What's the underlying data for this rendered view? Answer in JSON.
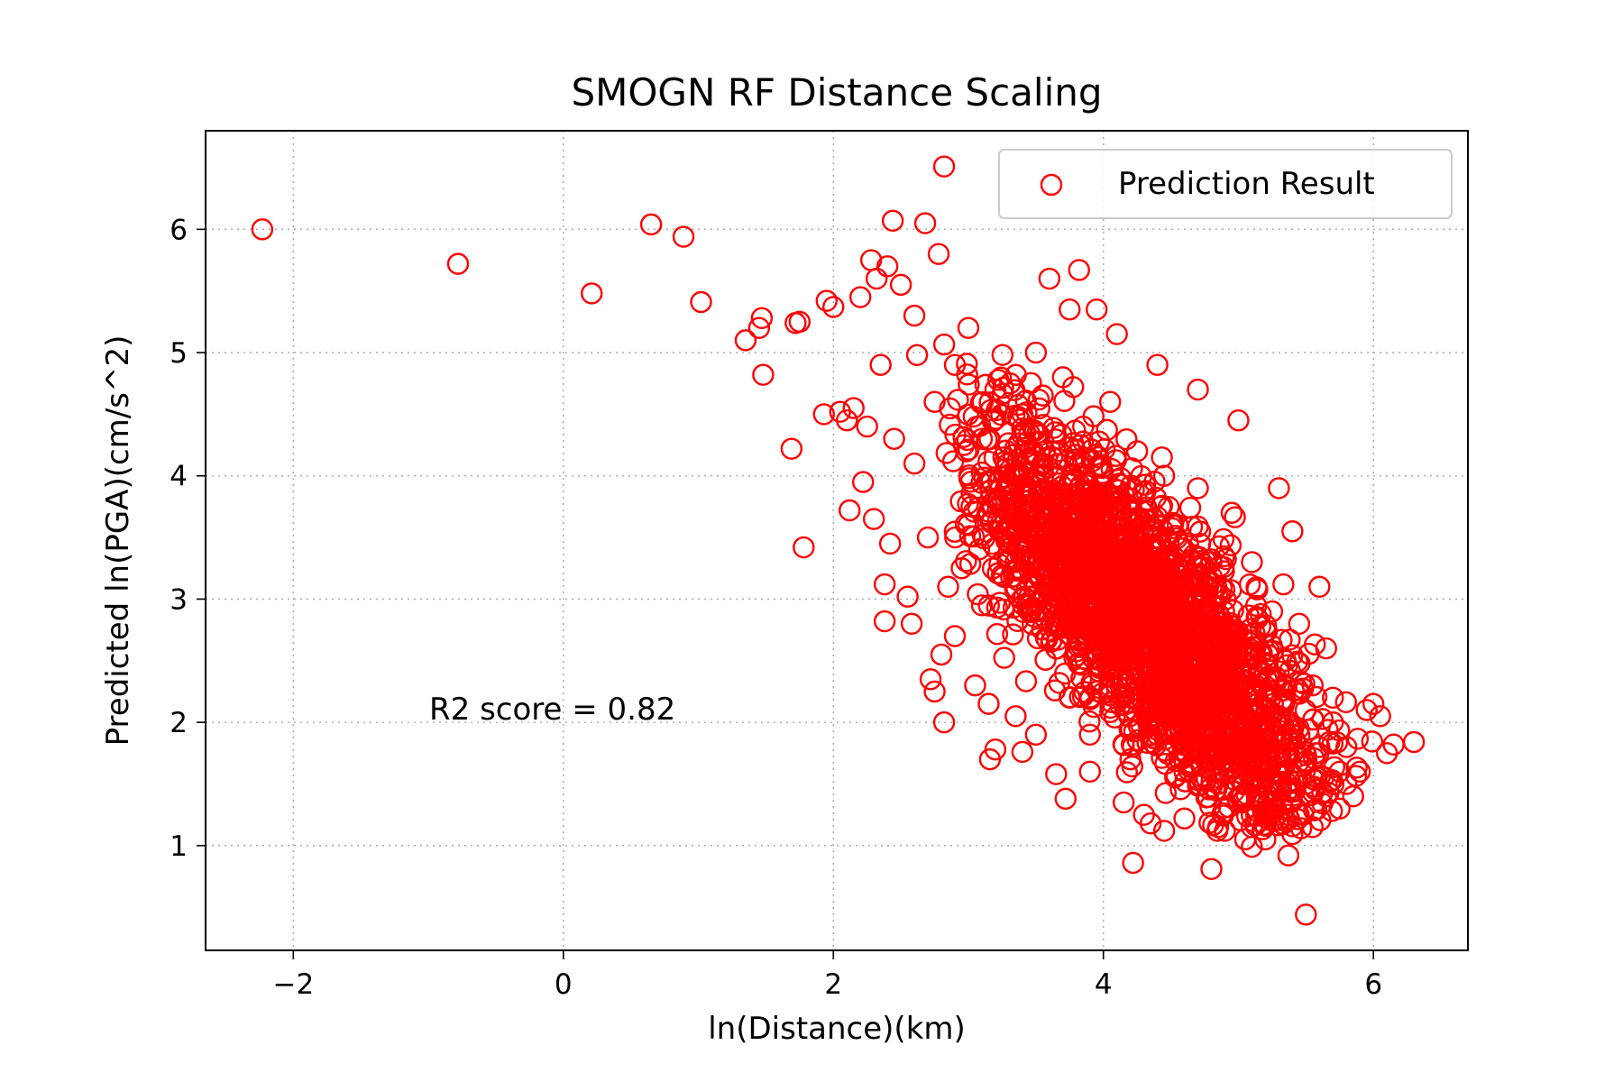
{
  "chart_data": {
    "type": "scatter",
    "title": "SMOGN RF Distance Scaling",
    "xlabel": "ln(Distance)(km)",
    "ylabel": "Predicted ln(PGA)(cm/s^2)",
    "xlim": [
      -2.65,
      6.7
    ],
    "ylim": [
      0.15,
      6.8
    ],
    "xticks": [
      -2,
      0,
      2,
      4,
      6
    ],
    "xtick_labels": [
      "−2",
      "0",
      "2",
      "4",
      "6"
    ],
    "yticks": [
      1,
      2,
      3,
      4,
      5,
      6
    ],
    "ytick_labels": [
      "1",
      "2",
      "3",
      "4",
      "5",
      "6"
    ],
    "grid": true,
    "legend_position": "top-right",
    "annotation": "R2 score = 0.82",
    "marker": "hollow-circle",
    "series": [
      {
        "name": "Prediction Result",
        "color": "#ff0000",
        "points": [
          [
            -2.23,
            6.0
          ],
          [
            -0.78,
            5.72
          ],
          [
            0.21,
            5.48
          ],
          [
            0.65,
            6.04
          ],
          [
            0.89,
            5.94
          ],
          [
            1.02,
            5.41
          ],
          [
            1.35,
            5.1
          ],
          [
            1.45,
            5.2
          ],
          [
            1.47,
            5.28
          ],
          [
            1.48,
            4.82
          ],
          [
            1.69,
            4.22
          ],
          [
            1.72,
            5.24
          ],
          [
            1.75,
            5.25
          ],
          [
            1.78,
            3.42
          ],
          [
            1.93,
            4.5
          ],
          [
            1.95,
            5.42
          ],
          [
            2.0,
            5.37
          ],
          [
            2.05,
            4.52
          ],
          [
            2.1,
            4.45
          ],
          [
            2.12,
            3.72
          ],
          [
            2.15,
            4.55
          ],
          [
            2.2,
            5.45
          ],
          [
            2.22,
            3.95
          ],
          [
            2.25,
            4.4
          ],
          [
            2.28,
            5.75
          ],
          [
            2.3,
            3.65
          ],
          [
            2.32,
            5.6
          ],
          [
            2.35,
            4.9
          ],
          [
            2.38,
            2.82
          ],
          [
            2.38,
            3.12
          ],
          [
            2.4,
            5.7
          ],
          [
            2.42,
            3.45
          ],
          [
            2.44,
            6.07
          ],
          [
            2.45,
            4.3
          ],
          [
            2.5,
            5.55
          ],
          [
            2.55,
            3.02
          ],
          [
            2.58,
            2.8
          ],
          [
            2.6,
            5.3
          ],
          [
            2.62,
            4.98
          ],
          [
            2.68,
            6.05
          ],
          [
            2.72,
            2.35
          ],
          [
            2.75,
            2.25
          ],
          [
            2.78,
            5.8
          ],
          [
            2.8,
            2.55
          ],
          [
            2.82,
            6.51
          ],
          [
            2.82,
            2.0
          ],
          [
            2.85,
            3.1
          ],
          [
            2.9,
            2.7
          ],
          [
            2.95,
            3.25
          ],
          [
            3.0,
            3.6
          ],
          [
            3.05,
            2.3
          ],
          [
            3.1,
            2.95
          ],
          [
            3.15,
            2.15
          ],
          [
            3.16,
            1.7
          ],
          [
            3.2,
            1.78
          ],
          [
            3.25,
            3.8
          ],
          [
            3.35,
            2.05
          ],
          [
            3.4,
            1.76
          ],
          [
            3.5,
            1.9
          ],
          [
            3.6,
            5.6
          ],
          [
            3.65,
            1.58
          ],
          [
            3.72,
            1.38
          ],
          [
            3.75,
            5.35
          ],
          [
            3.82,
            5.67
          ],
          [
            3.9,
            1.6
          ],
          [
            3.95,
            5.35
          ],
          [
            4.1,
            5.15
          ],
          [
            4.15,
            1.35
          ],
          [
            4.22,
            0.86
          ],
          [
            4.3,
            1.25
          ],
          [
            4.35,
            1.18
          ],
          [
            4.4,
            4.9
          ],
          [
            4.45,
            1.12
          ],
          [
            4.6,
            1.22
          ],
          [
            4.7,
            4.7
          ],
          [
            4.8,
            0.81
          ],
          [
            4.85,
            1.15
          ],
          [
            4.9,
            1.12
          ],
          [
            5.0,
            4.45
          ],
          [
            5.05,
            1.05
          ],
          [
            5.1,
            0.99
          ],
          [
            5.2,
            1.05
          ],
          [
            5.3,
            3.9
          ],
          [
            5.37,
            0.92
          ],
          [
            5.4,
            3.55
          ],
          [
            5.48,
            1.25
          ],
          [
            5.5,
            0.44
          ],
          [
            5.55,
            1.15
          ],
          [
            5.6,
            3.1
          ],
          [
            5.65,
            2.6
          ],
          [
            5.7,
            2.2
          ],
          [
            5.75,
            1.3
          ],
          [
            5.8,
            1.8
          ],
          [
            5.85,
            1.4
          ],
          [
            5.9,
            1.6
          ],
          [
            5.95,
            2.1
          ],
          [
            6.0,
            2.15
          ],
          [
            6.05,
            2.05
          ],
          [
            6.1,
            1.75
          ],
          [
            6.15,
            1.82
          ],
          [
            6.3,
            1.84
          ],
          [
            2.6,
            4.1
          ],
          [
            2.7,
            3.5
          ],
          [
            2.75,
            4.6
          ],
          [
            2.9,
            4.9
          ],
          [
            3.0,
            5.2
          ],
          [
            3.1,
            4.3
          ],
          [
            3.2,
            4.7
          ],
          [
            3.3,
            3.9
          ],
          [
            3.35,
            3.3
          ],
          [
            3.4,
            4.5
          ],
          [
            3.45,
            2.9
          ],
          [
            3.5,
            5.0
          ],
          [
            3.55,
            4.1
          ],
          [
            3.6,
            3.6
          ],
          [
            3.65,
            2.6
          ],
          [
            3.7,
            4.8
          ],
          [
            3.75,
            2.2
          ],
          [
            3.8,
            3.1
          ],
          [
            3.85,
            4.4
          ],
          [
            3.9,
            1.9
          ],
          [
            3.95,
            3.8
          ],
          [
            4.0,
            2.8
          ],
          [
            4.05,
            4.6
          ],
          [
            4.1,
            2.3
          ],
          [
            4.15,
            3.5
          ],
          [
            4.2,
            1.7
          ],
          [
            4.25,
            4.2
          ],
          [
            4.3,
            2.6
          ],
          [
            4.35,
            3.2
          ],
          [
            4.4,
            1.9
          ],
          [
            4.45,
            4.0
          ],
          [
            4.5,
            2.4
          ],
          [
            4.55,
            3.6
          ],
          [
            4.6,
            1.6
          ],
          [
            4.65,
            2.9
          ],
          [
            4.7,
            3.9
          ],
          [
            4.75,
            2.1
          ],
          [
            4.8,
            3.3
          ],
          [
            4.85,
            1.5
          ],
          [
            4.9,
            2.7
          ],
          [
            4.95,
            3.7
          ],
          [
            5.0,
            1.8
          ],
          [
            5.05,
            2.4
          ],
          [
            5.1,
            3.3
          ],
          [
            5.15,
            1.4
          ],
          [
            5.2,
            2.2
          ],
          [
            5.25,
            2.9
          ],
          [
            5.3,
            1.6
          ],
          [
            5.35,
            2.5
          ],
          [
            5.4,
            1.9
          ],
          [
            5.45,
            2.8
          ],
          [
            5.5,
            1.5
          ],
          [
            5.55,
            2.3
          ],
          [
            5.6,
            1.8
          ],
          [
            5.65,
            1.4
          ],
          [
            5.7,
            2.0
          ],
          [
            5.75,
            1.6
          ],
          [
            5.8,
            1.5
          ]
        ]
      }
    ]
  }
}
